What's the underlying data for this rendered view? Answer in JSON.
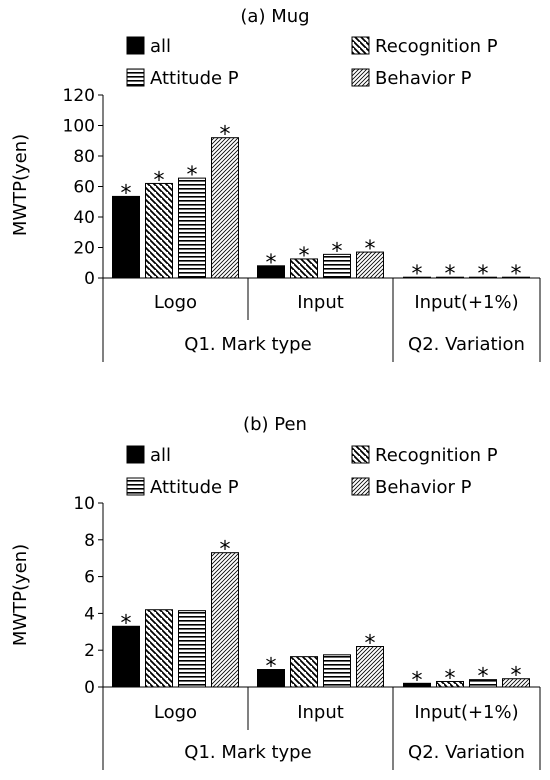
{
  "chart_data": [
    {
      "type": "bar",
      "title": "(a) Mug",
      "ylabel": "MWTP(yen)",
      "ylim": [
        0,
        120
      ],
      "yticks": [
        0,
        20,
        40,
        60,
        80,
        100,
        120
      ],
      "categories": [
        "Logo",
        "Input",
        "Input(+1%)"
      ],
      "groups": [
        {
          "label": "Q1. Mark type",
          "span": [
            "Logo",
            "Input"
          ]
        },
        {
          "label": "Q2. Variation",
          "span": [
            "Input(+1%)"
          ]
        }
      ],
      "series": [
        {
          "name": "all",
          "values": [
            53.5,
            8.0,
            0.4
          ],
          "pattern": "solid"
        },
        {
          "name": "Recognition P",
          "values": [
            62.0,
            12.5,
            0.4
          ],
          "pattern": "diagonal-down"
        },
        {
          "name": "Attitude P",
          "values": [
            65.5,
            15.5,
            0.4
          ],
          "pattern": "horizontal"
        },
        {
          "name": "Behavior P",
          "values": [
            92.0,
            17.0,
            0.4
          ],
          "pattern": "diagonal-up"
        }
      ],
      "significance_marker": "*",
      "significant": [
        [
          true,
          true,
          true
        ],
        [
          true,
          true,
          true
        ],
        [
          true,
          true,
          true
        ],
        [
          true,
          true,
          true
        ]
      ],
      "grid": false,
      "legend_position": "top"
    },
    {
      "type": "bar",
      "title": "(b) Pen",
      "ylabel": "MWTP(yen)",
      "ylim": [
        0,
        10
      ],
      "yticks": [
        0,
        2,
        4,
        6,
        8,
        10
      ],
      "categories": [
        "Logo",
        "Input",
        "Input(+1%)"
      ],
      "groups": [
        {
          "label": "Q1. Mark type",
          "span": [
            "Logo",
            "Input"
          ]
        },
        {
          "label": "Q2. Variation",
          "span": [
            "Input(+1%)"
          ]
        }
      ],
      "series": [
        {
          "name": "all",
          "values": [
            3.3,
            0.95,
            0.2
          ],
          "pattern": "solid"
        },
        {
          "name": "Recognition P",
          "values": [
            4.2,
            1.65,
            0.3
          ],
          "pattern": "diagonal-down"
        },
        {
          "name": "Attitude P",
          "values": [
            4.15,
            1.75,
            0.4
          ],
          "pattern": "horizontal"
        },
        {
          "name": "Behavior P",
          "values": [
            7.3,
            2.2,
            0.45
          ],
          "pattern": "diagonal-up"
        }
      ],
      "significance_marker": "*",
      "significant": [
        [
          true,
          true,
          true
        ],
        [
          false,
          false,
          true
        ],
        [
          false,
          false,
          true
        ],
        [
          true,
          true,
          true
        ]
      ],
      "grid": false,
      "legend_position": "top"
    }
  ]
}
